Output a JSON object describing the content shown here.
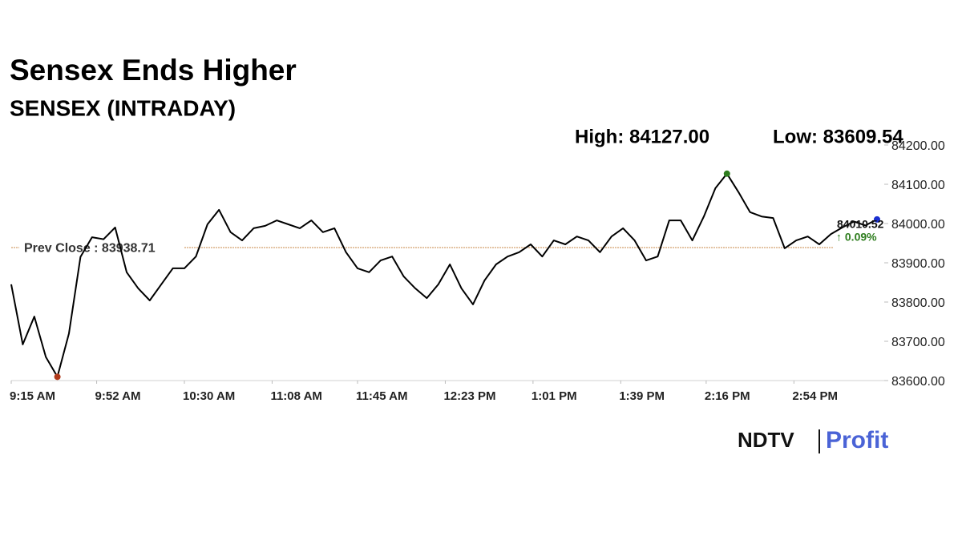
{
  "chart_data": {
    "type": "line",
    "title": "Sensex Ends Higher",
    "subtitle": "SENSEX (INTRADAY)",
    "high_label": "High: 84127.00",
    "low_label": "Low: 83609.54",
    "reference_line": {
      "value": 83938.71,
      "label": "Prev Close : 83938.71"
    },
    "last_change": {
      "value": 0.09,
      "label": "↑ 0.09%"
    },
    "high_index": 62,
    "low_index": 4,
    "high_color": "#2e7d1e",
    "low_color": "#b03a1a",
    "last_color": "#1a2fd0",
    "change_color": "#2e7d1e",
    "x": [
      "9:15 AM",
      "9:20 AM",
      "9:25 AM",
      "9:30 AM",
      "9:35 AM",
      "9:40 AM",
      "9:45 AM",
      "9:50 AM",
      "9:55 AM",
      "10:00 AM",
      "10:05 AM",
      "10:10 AM",
      "10:15 AM",
      "10:20 AM",
      "10:25 AM",
      "10:30 AM",
      "10:35 AM",
      "10:40 AM",
      "10:45 AM",
      "10:50 AM",
      "10:55 AM",
      "11:00 AM",
      "11:05 AM",
      "11:10 AM",
      "11:15 AM",
      "11:20 AM",
      "11:25 AM",
      "11:30 AM",
      "11:35 AM",
      "11:40 AM",
      "11:45 AM",
      "11:50 AM",
      "11:55 AM",
      "12:00 PM",
      "12:05 PM",
      "12:10 PM",
      "12:15 PM",
      "12:20 PM",
      "12:25 PM",
      "12:30 PM",
      "12:35 PM",
      "12:40 PM",
      "12:45 PM",
      "12:50 PM",
      "12:55 PM",
      "1:00 PM",
      "1:05 PM",
      "1:10 PM",
      "1:15 PM",
      "1:20 PM",
      "1:25 PM",
      "1:30 PM",
      "1:35 PM",
      "1:40 PM",
      "1:45 PM",
      "1:50 PM",
      "1:55 PM",
      "2:00 PM",
      "2:05 PM",
      "2:10 PM",
      "2:15 PM",
      "2:20 PM",
      "2:25 PM",
      "2:30 PM",
      "2:35 PM",
      "2:40 PM",
      "2:45 PM",
      "2:50 PM",
      "2:55 PM",
      "3:00 PM",
      "3:05 PM",
      "3:10 PM",
      "3:15 PM",
      "3:20 PM",
      "3:25 PM",
      "3:30 PM"
    ],
    "series": [
      {
        "name": "SENSEX",
        "color": "#000000",
        "values": [
          83845,
          83692,
          83763,
          83660,
          83609.54,
          83720,
          83915,
          83965,
          83960,
          83990,
          83876,
          83835,
          83804,
          83845,
          83886,
          83886,
          83916,
          83998,
          84035,
          83978,
          83957,
          83988,
          83994,
          84008,
          83998,
          83988,
          84008,
          83978,
          83988,
          83927,
          83886,
          83876,
          83906,
          83916,
          83865,
          83835,
          83810,
          83845,
          83896,
          83835,
          83794,
          83855,
          83896,
          83916,
          83927,
          83947,
          83916,
          83957,
          83947,
          83967,
          83957,
          83927,
          83967,
          83988,
          83957,
          83906,
          83916,
          84008,
          84008,
          83957,
          84018,
          84090,
          84127,
          84080,
          84029,
          84018,
          84014,
          83937,
          83957,
          83967,
          83947,
          83973,
          83990,
          84005,
          83995,
          84010.52
        ]
      }
    ],
    "xticks": [
      "9:15 AM",
      "9:52 AM",
      "10:30 AM",
      "11:08 AM",
      "11:45 AM",
      "12:23 PM",
      "1:01 PM",
      "1:39 PM",
      "2:16 PM",
      "2:54 PM"
    ],
    "ylim": [
      83600,
      84200
    ],
    "yticks": [
      {
        "value": 83600,
        "label": "83600.00"
      },
      {
        "value": 83700,
        "label": "83700.00"
      },
      {
        "value": 83800,
        "label": "83800.00"
      },
      {
        "value": 83900,
        "label": "83900.00"
      },
      {
        "value": 84000,
        "label": "84000.00"
      },
      {
        "value": 84100,
        "label": "84100.00"
      },
      {
        "value": 84200,
        "label": "84200.00"
      }
    ],
    "logo": {
      "left": "NDTV",
      "right": "Profit"
    }
  }
}
